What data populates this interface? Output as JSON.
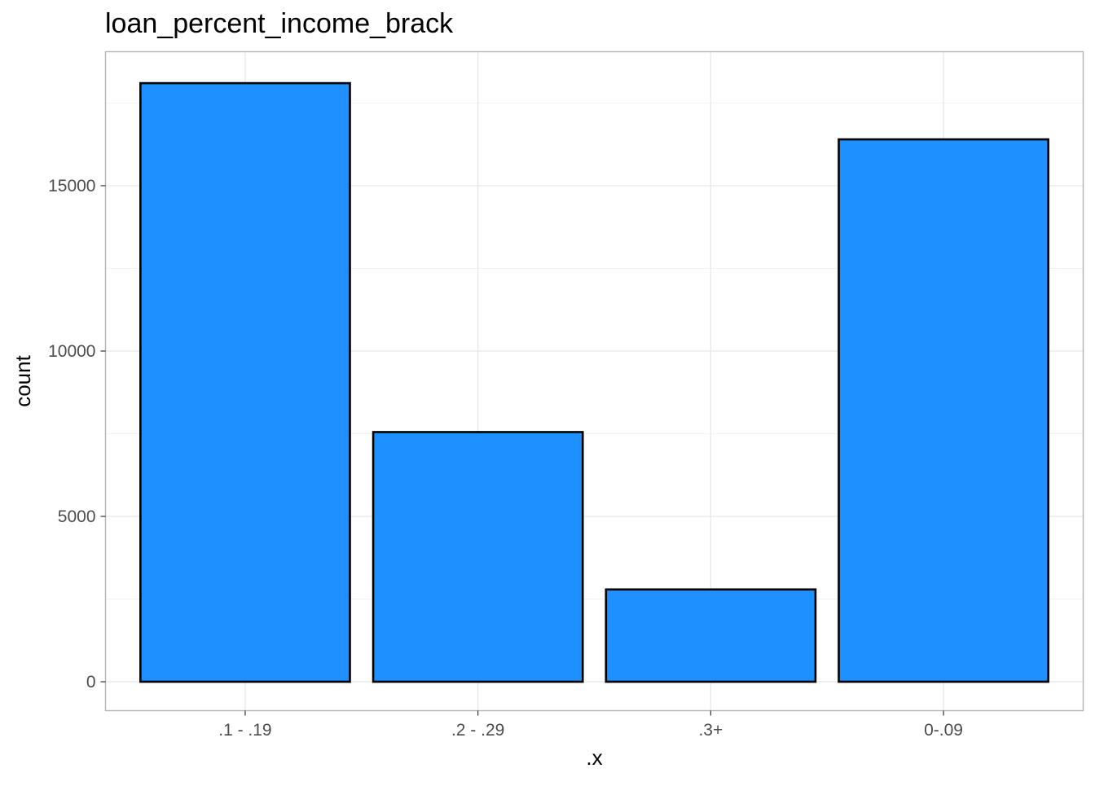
{
  "chart_data": {
    "type": "bar",
    "title": "loan_percent_income_brack",
    "xlabel": ".x",
    "ylabel": "count",
    "categories": [
      ".1 - .19",
      ".2 - .29",
      ".3+",
      "0-.09"
    ],
    "values": [
      18100,
      7550,
      2790,
      16400
    ],
    "ylim": [
      0,
      19050
    ],
    "yticks": [
      0,
      5000,
      10000,
      15000
    ],
    "grid": true,
    "bar_fill": "#1E90FF",
    "bar_stroke": "#000000",
    "panel_border": "#B3B3B3",
    "grid_major": "#E6E6E6",
    "grid_minor": "#F2F2F2"
  }
}
